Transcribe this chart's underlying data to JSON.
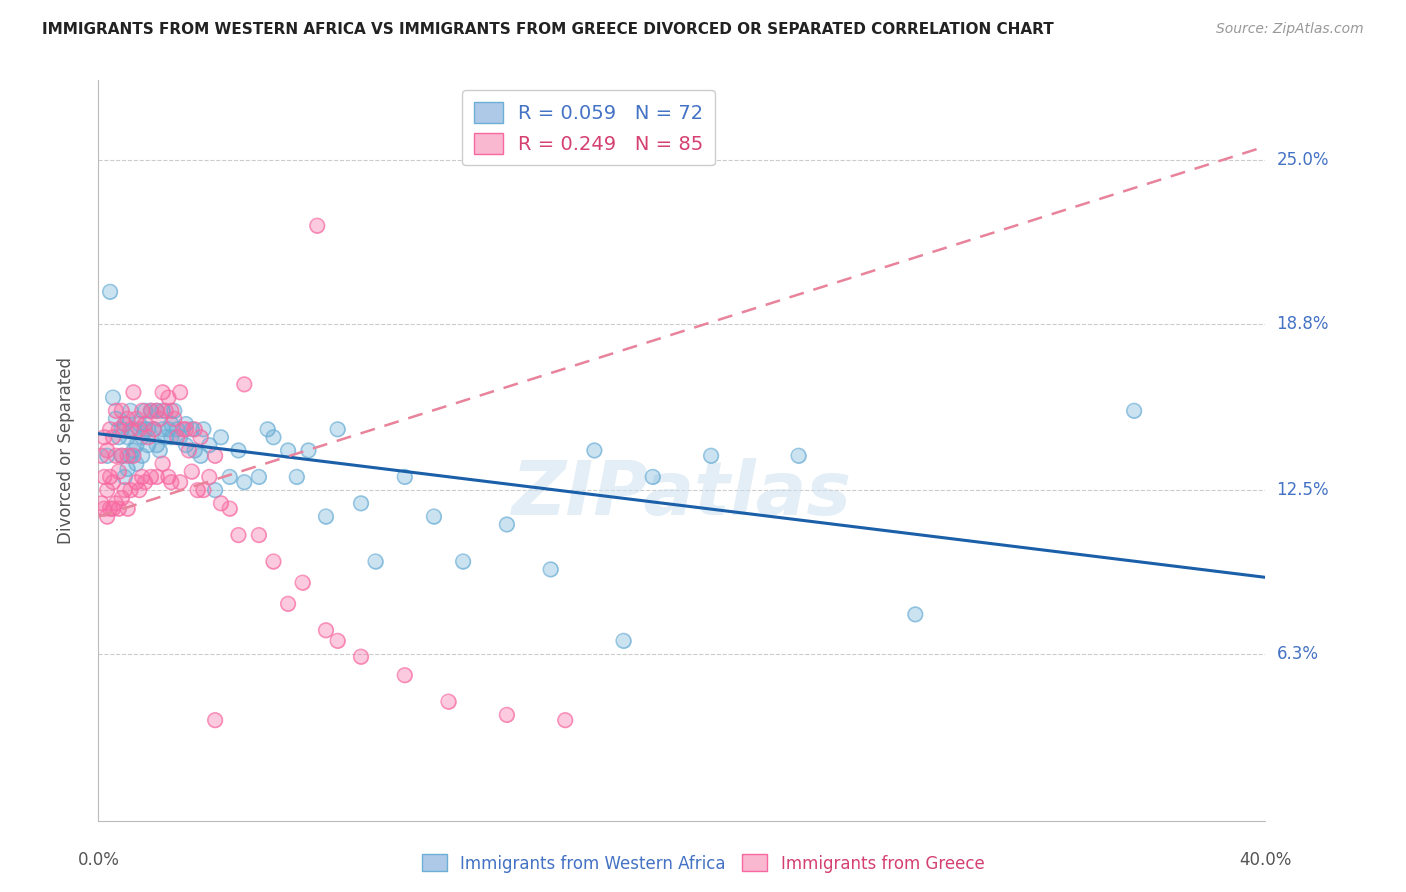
{
  "title": "IMMIGRANTS FROM WESTERN AFRICA VS IMMIGRANTS FROM GREECE DIVORCED OR SEPARATED CORRELATION CHART",
  "source": "Source: ZipAtlas.com",
  "ylabel": "Divorced or Separated",
  "xmin": 0.0,
  "xmax": 0.4,
  "ymin": 0.0,
  "ymax": 0.28,
  "yticks": [
    0.063,
    0.125,
    0.188,
    0.25
  ],
  "ytick_labels": [
    "6.3%",
    "12.5%",
    "18.8%",
    "25.0%"
  ],
  "blue_name": "Immigrants from Western Africa",
  "pink_name": "Immigrants from Greece",
  "blue_color": "#6baed6",
  "pink_color": "#f768a1",
  "blue_line_color": "#1a5fa8",
  "pink_line_color": "#e8839b",
  "watermark": "ZIPatlas",
  "background_color": "#ffffff",
  "blue_R": 0.059,
  "blue_N": 72,
  "pink_R": 0.249,
  "pink_N": 85,
  "blue_x": [
    0.003,
    0.004,
    0.005,
    0.006,
    0.007,
    0.008,
    0.008,
    0.009,
    0.009,
    0.01,
    0.01,
    0.011,
    0.011,
    0.012,
    0.012,
    0.013,
    0.013,
    0.014,
    0.015,
    0.015,
    0.016,
    0.016,
    0.017,
    0.017,
    0.018,
    0.019,
    0.02,
    0.02,
    0.021,
    0.022,
    0.022,
    0.023,
    0.024,
    0.025,
    0.025,
    0.026,
    0.027,
    0.028,
    0.03,
    0.03,
    0.032,
    0.033,
    0.035,
    0.036,
    0.038,
    0.04,
    0.042,
    0.045,
    0.048,
    0.05,
    0.055,
    0.058,
    0.06,
    0.065,
    0.068,
    0.072,
    0.078,
    0.082,
    0.09,
    0.095,
    0.105,
    0.115,
    0.125,
    0.14,
    0.155,
    0.17,
    0.19,
    0.21,
    0.24,
    0.28,
    0.355,
    0.18
  ],
  "blue_y": [
    0.138,
    0.2,
    0.16,
    0.152,
    0.145,
    0.148,
    0.138,
    0.13,
    0.15,
    0.133,
    0.145,
    0.138,
    0.155,
    0.14,
    0.148,
    0.142,
    0.135,
    0.15,
    0.145,
    0.138,
    0.148,
    0.155,
    0.142,
    0.148,
    0.155,
    0.148,
    0.155,
    0.142,
    0.14,
    0.155,
    0.148,
    0.145,
    0.148,
    0.145,
    0.15,
    0.155,
    0.148,
    0.145,
    0.15,
    0.142,
    0.148,
    0.14,
    0.138,
    0.148,
    0.142,
    0.125,
    0.145,
    0.13,
    0.14,
    0.128,
    0.13,
    0.148,
    0.145,
    0.14,
    0.13,
    0.14,
    0.115,
    0.148,
    0.12,
    0.098,
    0.13,
    0.115,
    0.098,
    0.112,
    0.095,
    0.14,
    0.13,
    0.138,
    0.138,
    0.078,
    0.155,
    0.068
  ],
  "pink_x": [
    0.001,
    0.001,
    0.002,
    0.002,
    0.002,
    0.003,
    0.003,
    0.003,
    0.004,
    0.004,
    0.004,
    0.005,
    0.005,
    0.005,
    0.006,
    0.006,
    0.006,
    0.007,
    0.007,
    0.007,
    0.008,
    0.008,
    0.008,
    0.009,
    0.009,
    0.01,
    0.01,
    0.01,
    0.011,
    0.011,
    0.012,
    0.012,
    0.013,
    0.013,
    0.014,
    0.014,
    0.015,
    0.015,
    0.016,
    0.016,
    0.017,
    0.018,
    0.018,
    0.019,
    0.02,
    0.02,
    0.021,
    0.022,
    0.022,
    0.023,
    0.024,
    0.024,
    0.025,
    0.025,
    0.026,
    0.027,
    0.028,
    0.028,
    0.029,
    0.03,
    0.031,
    0.032,
    0.033,
    0.034,
    0.035,
    0.036,
    0.038,
    0.04,
    0.042,
    0.045,
    0.048,
    0.05,
    0.055,
    0.06,
    0.065,
    0.07,
    0.078,
    0.082,
    0.09,
    0.105,
    0.12,
    0.14,
    0.16,
    0.075,
    0.04
  ],
  "pink_y": [
    0.138,
    0.12,
    0.13,
    0.145,
    0.118,
    0.14,
    0.125,
    0.115,
    0.148,
    0.13,
    0.118,
    0.145,
    0.128,
    0.118,
    0.155,
    0.138,
    0.12,
    0.148,
    0.132,
    0.118,
    0.155,
    0.138,
    0.122,
    0.15,
    0.125,
    0.152,
    0.138,
    0.118,
    0.148,
    0.125,
    0.162,
    0.138,
    0.152,
    0.128,
    0.148,
    0.125,
    0.155,
    0.13,
    0.15,
    0.128,
    0.145,
    0.155,
    0.13,
    0.148,
    0.155,
    0.13,
    0.152,
    0.162,
    0.135,
    0.155,
    0.16,
    0.13,
    0.155,
    0.128,
    0.152,
    0.145,
    0.162,
    0.128,
    0.148,
    0.148,
    0.14,
    0.132,
    0.148,
    0.125,
    0.145,
    0.125,
    0.13,
    0.138,
    0.12,
    0.118,
    0.108,
    0.165,
    0.108,
    0.098,
    0.082,
    0.09,
    0.072,
    0.068,
    0.062,
    0.055,
    0.045,
    0.04,
    0.038,
    0.225,
    0.038
  ]
}
